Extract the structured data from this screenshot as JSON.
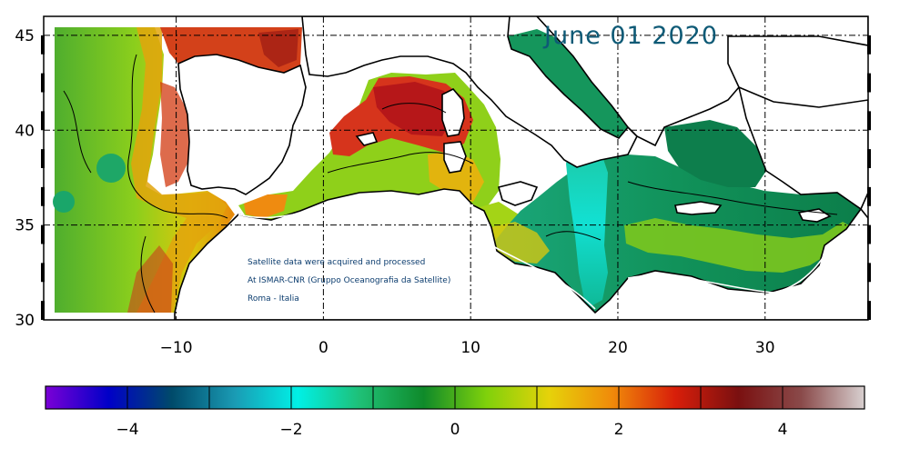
{
  "map": {
    "date": "June 01 2020",
    "credits": [
      "Satellite data were acquired and processed",
      "At ISMAR-CNR (Gruppo Oceanografia da Satellite)",
      "Roma - Italia"
    ],
    "lon_range": [
      -19,
      37
    ],
    "lat_range": [
      30,
      46
    ],
    "lon_ticks": [
      -10,
      0,
      10,
      20,
      30
    ],
    "lat_ticks": [
      30,
      35,
      40,
      45
    ],
    "lon_tick_labels": [
      "−10",
      "0",
      "10",
      "20",
      "30"
    ],
    "lat_tick_labels": [
      "30",
      "35",
      "40",
      "45"
    ],
    "land_color": "#ffffff",
    "grid_style": "dash-dot black"
  },
  "colorbar": {
    "range": [
      -5,
      5
    ],
    "tick_values": [
      -4,
      -2,
      0,
      2,
      4
    ],
    "tick_labels": [
      "−4",
      "−2",
      "0",
      "2",
      "4"
    ],
    "colors": [
      "#7b00d6",
      "#0000c8",
      "#004a6a",
      "#1a9bb4",
      "#00f0e6",
      "#1fbf75",
      "#0f8a2a",
      "#7fd10b",
      "#e6d20a",
      "#f08a0a",
      "#d81e0a",
      "#7a1010",
      "#8a4a4a",
      "#d8d0d0"
    ]
  }
}
